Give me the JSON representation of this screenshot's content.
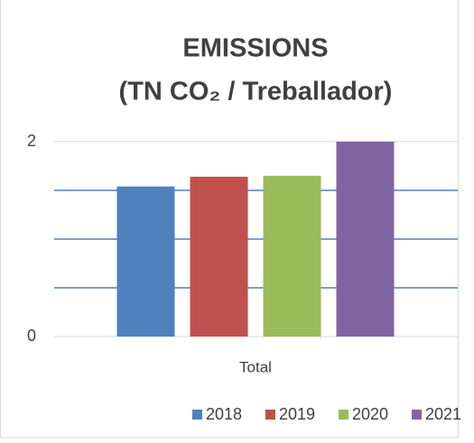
{
  "chart_data": {
    "type": "bar",
    "title": [
      "EMISSIONS",
      "(TN CO₂ / Treballador)"
    ],
    "categories": [
      "Total"
    ],
    "series": [
      {
        "name": "2018",
        "color": "#4f81bd",
        "values": [
          1.54
        ]
      },
      {
        "name": "2019",
        "color": "#c0504d",
        "values": [
          1.64
        ]
      },
      {
        "name": "2020",
        "color": "#9bbb59",
        "values": [
          1.65
        ]
      },
      {
        "name": "2021",
        "color": "#8064a2",
        "values": [
          2.0
        ]
      }
    ],
    "ylim": [
      0,
      2
    ],
    "yticks": [
      0,
      2
    ],
    "minor_gridlines": [
      0.5,
      1,
      1.5
    ],
    "legend": "bottom"
  }
}
